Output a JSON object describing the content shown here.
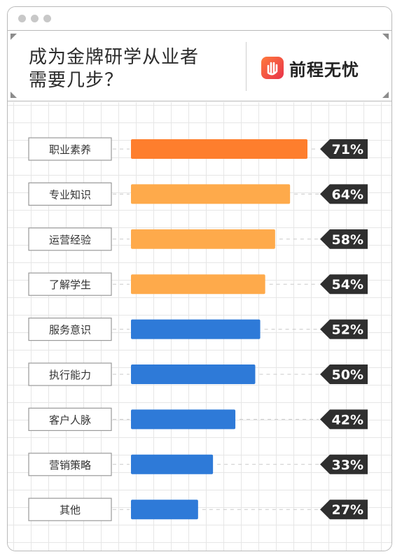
{
  "window": {
    "title_lines": [
      "成为金牌研学从业者",
      "需要几步？"
    ]
  },
  "brand": {
    "logo_name": "hand-logo-icon",
    "name": "前程无忧"
  },
  "colors": {
    "top": "#fe7e2d",
    "mid": "#feaa4b",
    "low": "#2e7ad8",
    "badge": "#2f2f2f",
    "label_border": "#9a9a9a"
  },
  "chart_data": {
    "type": "bar",
    "orientation": "horizontal",
    "categories": [
      "职业素养",
      "专业知识",
      "运营经验",
      "了解学生",
      "服务意识",
      "执行能力",
      "客户人脉",
      "营销策略",
      "其他"
    ],
    "values": [
      71,
      64,
      58,
      54,
      52,
      50,
      42,
      33,
      27
    ],
    "value_labels": [
      "71%",
      "64%",
      "58%",
      "54%",
      "52%",
      "50%",
      "42%",
      "33%",
      "27%"
    ],
    "bar_colors": [
      "#fe7e2d",
      "#feaa4b",
      "#feaa4b",
      "#feaa4b",
      "#2e7ad8",
      "#2e7ad8",
      "#2e7ad8",
      "#2e7ad8",
      "#2e7ad8"
    ],
    "unit": "%",
    "grid": true
  }
}
